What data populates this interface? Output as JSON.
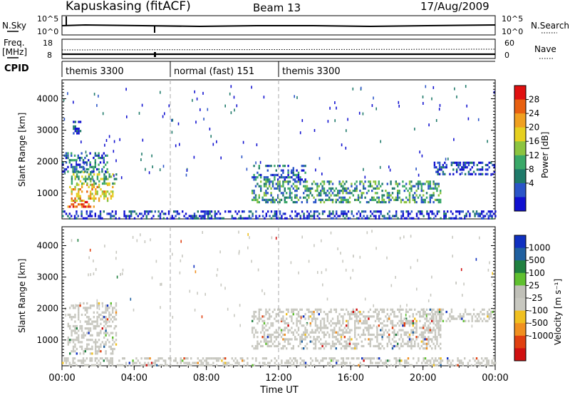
{
  "header": {
    "station": "Kapuskasing (fitACF)",
    "beam": "Beam 13",
    "date": "17/Aug/2009"
  },
  "summary_labels": {
    "nsky": "N.Sky",
    "nsky_ticks": [
      "10^5",
      "10^0"
    ],
    "nsearch": "N.Search",
    "freq": "Freq.",
    "freq_unit": "[MHz]",
    "freq_ticks": [
      "18",
      "8"
    ],
    "nave": "Nave",
    "nave_ticks": [
      "60",
      "0"
    ],
    "cpid": "CPID"
  },
  "modes": [
    {
      "label": "themis 3300",
      "start_hour": 0
    },
    {
      "label": "normal (fast) 151",
      "start_hour": 6
    },
    {
      "label": "themis 3300",
      "start_hour": 12
    }
  ],
  "power_colorbar": {
    "label": "Power [dB]",
    "ticks": [
      "28",
      "24",
      "20",
      "16",
      "12",
      "8",
      "4"
    ],
    "colors": [
      "#1010d0",
      "#2b55c8",
      "#1f7a6a",
      "#3aa868",
      "#8cc440",
      "#e6d020",
      "#f0a020",
      "#e86010",
      "#e01010"
    ]
  },
  "velocity_colorbar": {
    "label": "Velocity  [m s⁻¹]",
    "ticks": [
      "1000",
      "500",
      "100",
      "25",
      "-25",
      "-100",
      "-500",
      "-1000"
    ],
    "colors": [
      "#1030c0",
      "#2060a0",
      "#208040",
      "#60c030",
      "#c0c0b8",
      "#c8c8c0",
      "#f0c020",
      "#f09020",
      "#e04010",
      "#d01010"
    ]
  },
  "axes": {
    "ylabel": "Slant Range [km]",
    "xlabel": "Time UT",
    "xticks": [
      "00:00",
      "04:00",
      "08:00",
      "12:00",
      "16:00",
      "20:00",
      "00:00"
    ],
    "yticks": [
      "1000",
      "2000",
      "3000",
      "4000"
    ]
  },
  "chart_data": [
    {
      "type": "heatmap",
      "title": "Power",
      "xlabel": "Time UT",
      "ylabel": "Slant Range [km]",
      "xlim": [
        0,
        24
      ],
      "ylim": [
        180,
        4600
      ],
      "colorbar": "Power [dB]",
      "regions": [
        {
          "t": [
            0.3,
            1.8
          ],
          "r": [
            550,
            750
          ],
          "power_db": 28
        },
        {
          "t": [
            0.4,
            2.8
          ],
          "r": [
            750,
            1300
          ],
          "power_db": 20
        },
        {
          "t": [
            0.5,
            3.0
          ],
          "r": [
            1300,
            1700
          ],
          "power_db": 14
        },
        {
          "t": [
            0.0,
            2.5
          ],
          "r": [
            1700,
            2300
          ],
          "power_db": 8
        },
        {
          "t": [
            0.6,
            1.0
          ],
          "r": [
            2900,
            3300
          ],
          "power_db": 6
        },
        {
          "t": [
            10.5,
            21.0
          ],
          "r": [
            700,
            1400
          ],
          "power_db": 10
        },
        {
          "t": [
            10.5,
            13.5
          ],
          "r": [
            1400,
            1900
          ],
          "power_db": 8
        },
        {
          "t": [
            20.5,
            24.0
          ],
          "r": [
            1600,
            2000
          ],
          "power_db": 6
        },
        {
          "t": [
            0.0,
            24.0
          ],
          "r": [
            180,
            450
          ],
          "power_db": 6
        }
      ]
    },
    {
      "type": "heatmap",
      "title": "Velocity",
      "xlabel": "Time UT",
      "ylabel": "Slant Range [km]",
      "xlim": [
        0,
        24
      ],
      "ylim": [
        180,
        4600
      ],
      "colorbar": "Velocity [m s-1]",
      "regions": [
        {
          "t": [
            0.3,
            3.0
          ],
          "r": [
            550,
            2200
          ],
          "velocity": 0
        },
        {
          "t": [
            10.5,
            21.0
          ],
          "r": [
            700,
            2000
          ],
          "velocity": 0
        },
        {
          "t": [
            20.5,
            24.0
          ],
          "r": [
            1600,
            2000
          ],
          "velocity": 0
        },
        {
          "t": [
            0.0,
            24.0
          ],
          "r": [
            180,
            450
          ],
          "velocity": 0
        }
      ]
    }
  ]
}
